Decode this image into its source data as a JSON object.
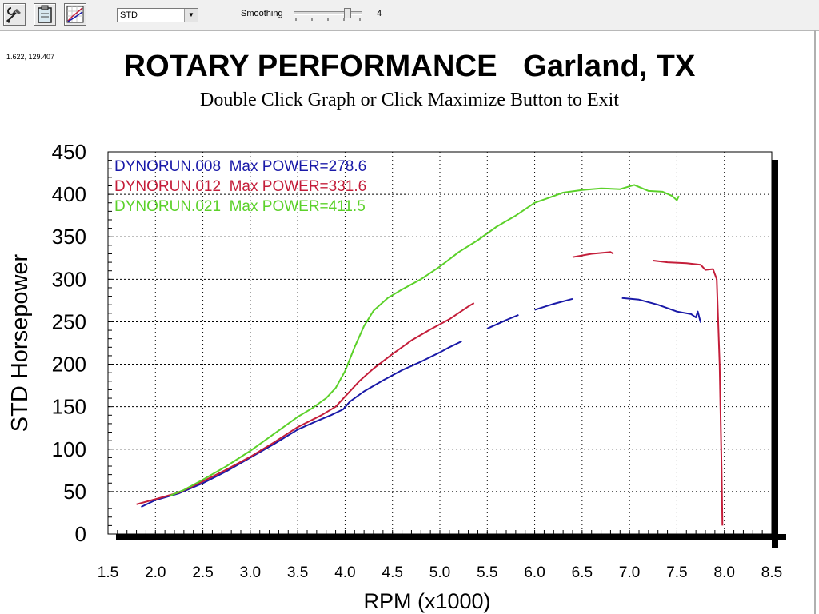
{
  "toolbar": {
    "buttons": [
      {
        "name": "tools-icon"
      },
      {
        "name": "clipboard-icon"
      },
      {
        "name": "graph-icon"
      }
    ],
    "display_mode": "STD",
    "smoothing_label": "Smoothing",
    "smoothing_value": "4",
    "smoothing_level": 4
  },
  "cursor_readout": "1.622, 129.407",
  "colors": {
    "run_008": "#1a1aa8",
    "run_012": "#c41e3a",
    "run_021": "#5cd12a",
    "frame_shadow": "#000000"
  },
  "chart_data": {
    "type": "line",
    "title": "ROTARY PERFORMANCE   Garland, TX",
    "subtitle": "Double Click Graph or Click Maximize Button to Exit",
    "xlabel": "RPM (x1000)",
    "ylabel": "STD Horsepower",
    "xlim": [
      1.5,
      8.5
    ],
    "ylim": [
      0,
      450
    ],
    "x_ticks": [
      "1.5",
      "2.0",
      "2.5",
      "3.0",
      "3.5",
      "4.0",
      "4.5",
      "5.0",
      "5.5",
      "6.0",
      "6.5",
      "7.0",
      "7.5",
      "8.0",
      "8.5"
    ],
    "y_ticks": [
      "0",
      "50",
      "100",
      "150",
      "200",
      "250",
      "300",
      "350",
      "400",
      "450"
    ],
    "grid": true,
    "legend_position": "top-left",
    "series": [
      {
        "name": "DYNORUN.008",
        "legend": "DYNORUN.008  Max POWER=278.6",
        "color": "#1a1aa8",
        "segments": [
          [
            [
              1.85,
              32
            ],
            [
              2.0,
              40
            ],
            [
              2.25,
              48
            ],
            [
              2.5,
              60
            ],
            [
              2.75,
              74
            ],
            [
              3.0,
              90
            ],
            [
              3.25,
              106
            ],
            [
              3.5,
              123
            ],
            [
              3.7,
              133
            ],
            [
              3.85,
              140
            ],
            [
              3.98,
              147
            ],
            [
              4.05,
              156
            ],
            [
              4.2,
              168
            ],
            [
              4.4,
              181
            ],
            [
              4.6,
              193
            ],
            [
              4.8,
              203
            ],
            [
              5.0,
              214
            ],
            [
              5.1,
              220
            ],
            [
              5.23,
              227
            ]
          ],
          [
            [
              5.5,
              242
            ],
            [
              5.7,
              252
            ],
            [
              5.83,
              258
            ]
          ],
          [
            [
              6.0,
              264
            ],
            [
              6.2,
              271
            ],
            [
              6.4,
              277
            ]
          ],
          [
            [
              6.92,
              278
            ],
            [
              7.1,
              276
            ],
            [
              7.3,
              270
            ],
            [
              7.5,
              262
            ],
            [
              7.65,
              259
            ],
            [
              7.7,
              255
            ],
            [
              7.72,
              262
            ],
            [
              7.75,
              249
            ]
          ]
        ]
      },
      {
        "name": "DYNORUN.012",
        "legend": "DYNORUN.012  Max POWER=331.6",
        "color": "#c41e3a",
        "segments": [
          [
            [
              1.8,
              35
            ],
            [
              2.0,
              41
            ],
            [
              2.25,
              49
            ],
            [
              2.5,
              62
            ],
            [
              2.75,
              76
            ],
            [
              3.0,
              91
            ],
            [
              3.25,
              108
            ],
            [
              3.5,
              126
            ],
            [
              3.75,
              140
            ],
            [
              3.9,
              150
            ],
            [
              4.0,
              162
            ],
            [
              4.15,
              180
            ],
            [
              4.3,
              195
            ],
            [
              4.5,
              212
            ],
            [
              4.7,
              228
            ],
            [
              4.9,
              241
            ],
            [
              5.1,
              253
            ],
            [
              5.3,
              268
            ],
            [
              5.36,
              272
            ]
          ],
          [
            [
              6.4,
              326
            ],
            [
              6.6,
              330
            ],
            [
              6.8,
              332
            ],
            [
              6.83,
              330
            ]
          ],
          [
            [
              7.25,
              322
            ],
            [
              7.4,
              320
            ],
            [
              7.6,
              319
            ],
            [
              7.75,
              317
            ],
            [
              7.8,
              311
            ],
            [
              7.88,
              312
            ],
            [
              7.92,
              300
            ],
            [
              7.95,
              200
            ],
            [
              7.97,
              80
            ],
            [
              7.98,
              10
            ]
          ]
        ]
      },
      {
        "name": "DYNORUN.021",
        "legend": "DYNORUN.021  Max POWER=411.5",
        "color": "#5cd12a",
        "segments": [
          [
            [
              2.15,
              45
            ],
            [
              2.3,
              52
            ],
            [
              2.5,
              64
            ],
            [
              2.75,
              80
            ],
            [
              3.0,
              98
            ],
            [
              3.25,
              118
            ],
            [
              3.5,
              138
            ],
            [
              3.65,
              148
            ],
            [
              3.8,
              160
            ],
            [
              3.9,
              172
            ],
            [
              4.0,
              192
            ],
            [
              4.1,
              220
            ],
            [
              4.2,
              245
            ],
            [
              4.3,
              263
            ],
            [
              4.45,
              278
            ],
            [
              4.6,
              288
            ],
            [
              4.8,
              300
            ],
            [
              5.0,
              315
            ],
            [
              5.2,
              332
            ],
            [
              5.4,
              346
            ],
            [
              5.6,
              362
            ],
            [
              5.8,
              375
            ],
            [
              6.0,
              390
            ],
            [
              6.15,
              396
            ],
            [
              6.3,
              402
            ],
            [
              6.5,
              405
            ],
            [
              6.7,
              407
            ],
            [
              6.9,
              406
            ],
            [
              7.05,
              411
            ],
            [
              7.2,
              404
            ],
            [
              7.35,
              403
            ],
            [
              7.45,
              398
            ],
            [
              7.5,
              393
            ],
            [
              7.52,
              398
            ]
          ]
        ]
      }
    ]
  }
}
